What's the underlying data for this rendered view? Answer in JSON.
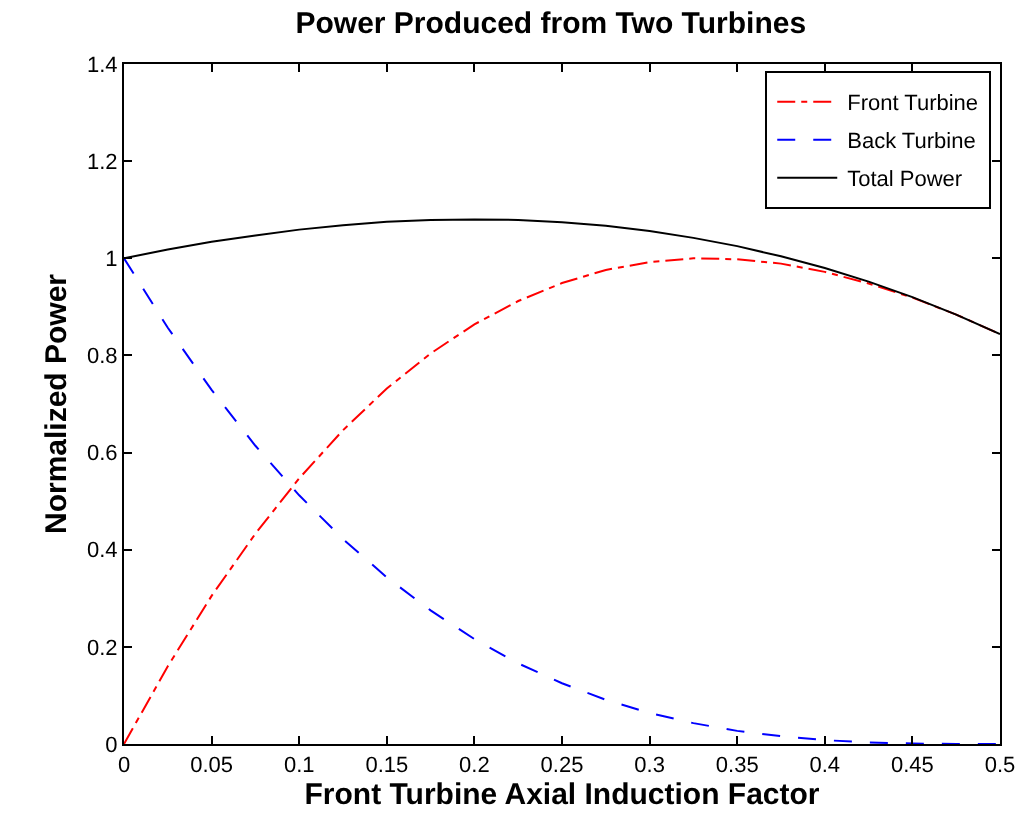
{
  "chart_data": {
    "type": "line",
    "title": "Power Produced from Two Turbines",
    "xlabel": "Front Turbine Axial Induction Factor",
    "ylabel": "Normalized Power",
    "x": [
      0,
      0.025,
      0.05,
      0.075,
      0.1,
      0.125,
      0.15,
      0.175,
      0.2,
      0.225,
      0.25,
      0.275,
      0.3,
      0.325,
      0.35,
      0.375,
      0.4,
      0.425,
      0.45,
      0.475,
      0.5
    ],
    "series": [
      {
        "name": "Front Turbine",
        "color": "#ff0000",
        "line_style": "dashdot",
        "values": [
          0,
          0.16,
          0.305,
          0.433,
          0.547,
          0.646,
          0.732,
          0.804,
          0.864,
          0.912,
          0.949,
          0.976,
          0.992,
          1.0,
          0.998,
          0.989,
          0.972,
          0.948,
          0.919,
          0.884,
          0.844
        ]
      },
      {
        "name": "Back Turbine",
        "color": "#0000ff",
        "line_style": "dashed",
        "values": [
          1,
          0.857,
          0.729,
          0.614,
          0.512,
          0.422,
          0.343,
          0.275,
          0.216,
          0.166,
          0.125,
          0.091,
          0.064,
          0.043,
          0.027,
          0.016,
          0.008,
          0.003,
          0.001,
          0,
          0
        ]
      },
      {
        "name": "Total Power",
        "color": "#000000",
        "line_style": "solid",
        "values": [
          1,
          1.018,
          1.034,
          1.047,
          1.059,
          1.068,
          1.075,
          1.079,
          1.08,
          1.079,
          1.074,
          1.067,
          1.056,
          1.042,
          1.025,
          1.004,
          0.98,
          0.952,
          0.92,
          0.884,
          0.844
        ]
      }
    ],
    "xlim": [
      0,
      0.5
    ],
    "xticks": [
      0,
      0.05,
      0.1,
      0.15,
      0.2,
      0.25,
      0.3,
      0.35,
      0.4,
      0.45,
      0.5
    ],
    "ylim": [
      0,
      1.4
    ],
    "yticks": [
      0,
      0.2,
      0.4,
      0.6,
      0.8,
      1,
      1.2,
      1.4
    ],
    "grid": false,
    "legend": "top right",
    "marker": "none"
  }
}
